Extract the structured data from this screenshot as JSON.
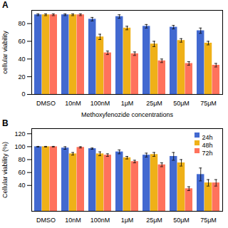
{
  "chart_data": [
    {
      "type": "bar",
      "title": "A",
      "categories": [
        "DMSO",
        "10nM",
        "100nM",
        "1μM",
        "25μM",
        "50μM",
        "75μM"
      ],
      "series": [
        {
          "name": "24h",
          "values": [
            90,
            90,
            85,
            88,
            77,
            76,
            72
          ],
          "errors": [
            1,
            1,
            2,
            2,
            2,
            2,
            3
          ]
        },
        {
          "name": "48h",
          "values": [
            90,
            90,
            65,
            75,
            57,
            61,
            58
          ],
          "errors": [
            1,
            1,
            3,
            2,
            3,
            2,
            2
          ]
        },
        {
          "name": "72h",
          "values": [
            90,
            90,
            47,
            46,
            38,
            35,
            33
          ],
          "errors": [
            1,
            1,
            2,
            2,
            2,
            2,
            2
          ]
        }
      ],
      "xlabel": "Methoxyfenozide concentrations",
      "ylabel": "cellular viability",
      "ylim": [
        0,
        95
      ],
      "yticks": [
        0,
        20,
        40,
        60,
        80
      ]
    },
    {
      "type": "bar",
      "title": "B",
      "categories": [
        "DMSO",
        "10nM",
        "100nM",
        "1μM",
        "25μM",
        "50μM",
        "75μM"
      ],
      "series": [
        {
          "name": "24h",
          "values": [
            100,
            98,
            97,
            92,
            87,
            85,
            57
          ],
          "errors": [
            0.5,
            2,
            1,
            3,
            3,
            6,
            10
          ]
        },
        {
          "name": "48h",
          "values": [
            100,
            89,
            89,
            83,
            88,
            75,
            44
          ],
          "errors": [
            0.5,
            2,
            3,
            2,
            3,
            5,
            5
          ]
        },
        {
          "name": "72h",
          "values": [
            100,
            99,
            87,
            77,
            72,
            35,
            44
          ],
          "errors": [
            0.5,
            1,
            2,
            2,
            3,
            3,
            5
          ]
        }
      ],
      "ylabel": "Cellular viability (%)",
      "ylim": [
        0,
        128
      ],
      "yticks": [
        40,
        60,
        80,
        100,
        120
      ],
      "legend": "upper right"
    }
  ]
}
